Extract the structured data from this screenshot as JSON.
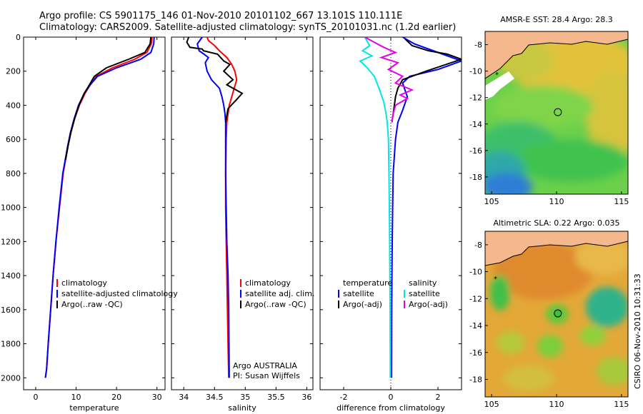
{
  "header": {
    "line1": "Argo profile: CS 5901175_146 01-Nov-2010 20101102_667 13.101S 110.111E",
    "line2": "Climatology: CARS2009. Satellite-adjusted climatology: synTS_20101031.nc (1.2d earlier)"
  },
  "colors": {
    "climatology": "#ff0000",
    "satellite": "#0000ff",
    "argo": "#000000",
    "sal_satellite": "#00e5e5",
    "sal_argo": "#e600e6",
    "land": "#f4b88c"
  },
  "chart_data": [
    {
      "type": "line",
      "id": "temperature",
      "xlabel": "temperature",
      "xlim": [
        -3,
        32
      ],
      "ylim": [
        2070,
        0
      ],
      "xticks": [
        0,
        10,
        20,
        30
      ],
      "yticks": [
        0,
        200,
        400,
        600,
        800,
        1000,
        1200,
        1400,
        1600,
        1800,
        2000
      ],
      "legend": [
        "climatology",
        "satellite-adjusted climatology",
        "Argo(..raw -QC)"
      ],
      "series": [
        {
          "name": "climatology",
          "color": "#ff0000",
          "x": [
            28.8,
            28.6,
            27.5,
            24.5,
            19.0,
            15.0,
            13.5,
            12.2,
            10.8,
            9.6,
            8.7,
            8.0,
            7.4,
            6.8,
            5.9,
            5.0,
            4.3,
            3.7,
            3.1,
            2.7,
            2.4
          ],
          "y": [
            0,
            40,
            90,
            130,
            180,
            230,
            280,
            330,
            400,
            480,
            560,
            640,
            720,
            800,
            1000,
            1200,
            1400,
            1600,
            1800,
            1950,
            2000
          ]
        },
        {
          "name": "satellite-adjusted climatology",
          "color": "#0000ff",
          "x": [
            29.3,
            29.2,
            28.5,
            26.0,
            20.0,
            15.3,
            13.5,
            12.0,
            10.6,
            9.5,
            8.6,
            7.9,
            7.3,
            6.7,
            5.8,
            5.0,
            4.3,
            3.7,
            3.1,
            2.7,
            2.4
          ],
          "y": [
            0,
            40,
            90,
            130,
            180,
            230,
            280,
            330,
            400,
            480,
            560,
            640,
            720,
            800,
            1000,
            1200,
            1400,
            1600,
            1800,
            1950,
            2000
          ]
        },
        {
          "name": "Argo(..raw -QC)",
          "color": "#000000",
          "x": [
            28.5,
            28.3,
            27.0,
            23.0,
            17.5,
            14.5,
            13.3,
            12.0,
            10.7,
            9.6,
            8.7,
            8.0,
            7.4
          ],
          "y": [
            0,
            40,
            90,
            130,
            180,
            230,
            280,
            330,
            400,
            480,
            560,
            640,
            720
          ]
        }
      ]
    },
    {
      "type": "line",
      "id": "salinity",
      "xlabel": "salinity",
      "xlim": [
        33.8,
        36.1
      ],
      "ylim": [
        2070,
        0
      ],
      "xticks": [
        34,
        34.5,
        35,
        35.5,
        36
      ],
      "legend": [
        "climatology",
        "satellite adj. clim.",
        "Argo(..raw -QC)"
      ],
      "annotation": [
        "Argo AUSTRALIA",
        "PI: Susan Wijffels"
      ],
      "series": [
        {
          "name": "climatology",
          "color": "#ff0000",
          "x": [
            34.38,
            34.4,
            34.5,
            34.58,
            34.7,
            34.78,
            34.83,
            34.86,
            34.82,
            34.78,
            34.74,
            34.72,
            34.7,
            34.69,
            34.68,
            34.68,
            34.69,
            34.7,
            34.71,
            34.72,
            34.73
          ],
          "y": [
            0,
            20,
            50,
            80,
            120,
            160,
            200,
            250,
            300,
            350,
            400,
            450,
            500,
            600,
            800,
            1000,
            1200,
            1400,
            1600,
            1800,
            2000
          ]
        },
        {
          "name": "satellite adj. clim.",
          "color": "#0000ff",
          "x": [
            34.3,
            34.22,
            34.25,
            34.33,
            34.4,
            34.35,
            34.38,
            34.45,
            34.58,
            34.62,
            34.65,
            34.67,
            34.68,
            34.68,
            34.68,
            34.69,
            34.7,
            34.72,
            34.73,
            34.74
          ],
          "y": [
            0,
            40,
            80,
            100,
            120,
            150,
            200,
            250,
            300,
            350,
            400,
            450,
            500,
            600,
            800,
            1000,
            1200,
            1400,
            1600,
            2000
          ]
        },
        {
          "name": "Argo(..raw -QC)",
          "color": "#000000",
          "x": [
            34.08,
            34.05,
            34.1,
            34.3,
            34.32,
            34.55,
            34.65,
            34.75,
            34.65,
            34.8,
            34.7,
            34.95,
            34.85,
            34.72,
            34.68
          ],
          "y": [
            0,
            30,
            60,
            70,
            80,
            100,
            140,
            160,
            200,
            250,
            280,
            330,
            370,
            420,
            500
          ]
        }
      ]
    },
    {
      "type": "line",
      "id": "difference",
      "xlabel": "difference from climatology",
      "xlim": [
        -3,
        3
      ],
      "ylim": [
        2070,
        0
      ],
      "xticks": [
        -2,
        0,
        2
      ],
      "legend_left_title": "temperature",
      "legend_right_title": "salinity",
      "legend": [
        "satellite",
        "Argo(-adj)",
        "satellite",
        "Argo(-adj)"
      ],
      "series": [
        {
          "name": "temperature satellite",
          "color": "#0000ff",
          "x": [
            0.5,
            1.0,
            2.0,
            3.0,
            2.0,
            0.8,
            0.5,
            0.6,
            0.7,
            0.5,
            0.3,
            0.2,
            0.1,
            0.08,
            0.06,
            0.05,
            0.04,
            0.03
          ],
          "y": [
            0,
            40,
            90,
            140,
            190,
            230,
            270,
            310,
            350,
            430,
            500,
            600,
            800,
            1000,
            1200,
            1400,
            1600,
            2000
          ]
        },
        {
          "name": "temperature Argo(-adj)",
          "color": "#000000",
          "x": [
            0.6,
            0.9,
            1.6,
            2.4,
            3.0,
            1.5,
            0.5,
            0.3,
            0.2,
            0.15,
            0.1,
            0.05
          ],
          "y": [
            10,
            50,
            80,
            100,
            130,
            200,
            250,
            300,
            350,
            400,
            450,
            500
          ]
        },
        {
          "name": "salinity satellite",
          "color": "#00e5e5",
          "x": [
            -1.1,
            -0.9,
            -1.2,
            -0.8,
            -1.3,
            -1.0,
            -0.7,
            -0.5,
            -0.3,
            -0.2,
            -0.15,
            -0.1,
            -0.08,
            -0.06,
            -0.05,
            -0.04,
            -0.03,
            -0.02
          ],
          "y": [
            0,
            50,
            80,
            110,
            140,
            180,
            230,
            300,
            380,
            450,
            500,
            600,
            800,
            1000,
            1200,
            1400,
            1600,
            2000
          ]
        },
        {
          "name": "salinity Argo(-adj)",
          "color": "#e600e6",
          "x": [
            -1.1,
            -0.7,
            -0.3,
            0.2,
            -0.4,
            0.3,
            -0.1,
            0.5,
            0.2,
            0.9,
            0.4,
            0.7,
            0.2,
            0.1,
            0.05
          ],
          "y": [
            0,
            30,
            60,
            90,
            120,
            150,
            190,
            230,
            270,
            310,
            340,
            360,
            400,
            450,
            500
          ]
        }
      ]
    }
  ],
  "maps": [
    {
      "id": "sst",
      "title": "AMSR-E SST: 28.4 Argo: 28.3",
      "xticks": [
        105,
        110,
        115
      ],
      "yticks": [
        -8,
        -10,
        -12,
        -14,
        -16,
        -18
      ],
      "marker": {
        "lon": 110.1,
        "lat": -13.1,
        "filled": false
      }
    },
    {
      "id": "sla",
      "title": "Altimetric SLA: 0.22 Argo: 0.035",
      "xticks": [
        105,
        110,
        115
      ],
      "yticks": [
        -8,
        -10,
        -12,
        -14,
        -16,
        -18
      ],
      "marker": {
        "lon": 110.1,
        "lat": -13.1,
        "filled": true
      }
    }
  ],
  "side_label": "CSIRO 06-Nov-2010 10:31:33"
}
